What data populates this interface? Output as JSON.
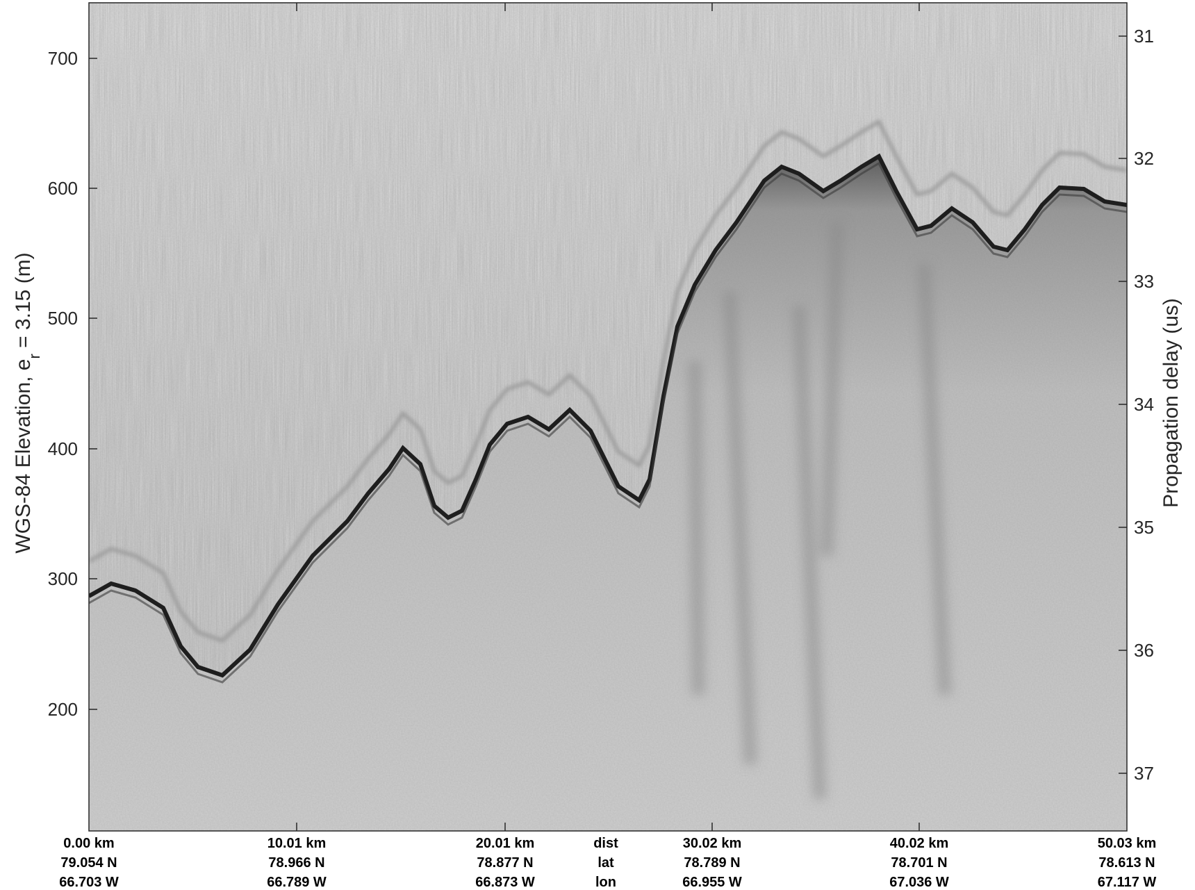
{
  "figure": {
    "left_axis_label": "WGS-84 Elevation, e",
    "left_axis_subscript": "r",
    "left_axis_suffix": " = 3.15 (m)",
    "right_axis_label": "Propagation delay (us)",
    "left_ticks": [
      "200",
      "300",
      "400",
      "500",
      "600",
      "700"
    ],
    "right_ticks": [
      "31",
      "32",
      "33",
      "34",
      "35",
      "36",
      "37"
    ],
    "bottom_labels": [
      {
        "dist": "0.00 km",
        "lat": "79.054 N",
        "lon": "66.703 W"
      },
      {
        "dist": "10.01 km",
        "lat": "78.966 N",
        "lon": "66.789 W"
      },
      {
        "dist": "20.01 km",
        "lat": "78.877 N",
        "lon": "66.873 W"
      },
      {
        "dist": "dist",
        "lat": "lat",
        "lon": "lon"
      },
      {
        "dist": "30.02 km",
        "lat": "78.789 N",
        "lon": "66.955 W"
      },
      {
        "dist": "40.02 km",
        "lat": "78.701 N",
        "lon": "67.036 W"
      },
      {
        "dist": "50.03 km",
        "lat": "78.613 N",
        "lon": "67.117 W"
      }
    ],
    "colormap": "gray"
  }
}
